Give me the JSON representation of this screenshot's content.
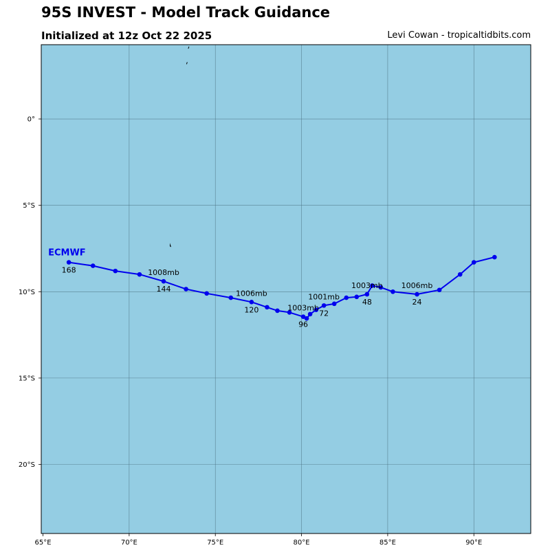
{
  "header": {
    "title": "95S INVEST - Model Track Guidance",
    "subtitle": "Initialized at 12z Oct 22 2025",
    "credit": "Levi Cowan - tropicaltidbits.com"
  },
  "colors": {
    "ocean": "#94cde3",
    "grid": "#4a6f80",
    "track": "#0000ee",
    "land": "#000000",
    "frame": "#000000"
  },
  "map": {
    "lon_range": [
      64.9,
      93.3
    ],
    "lat_range": [
      -24.0,
      4.3
    ],
    "lon_gridlines": [
      70,
      75,
      80,
      85,
      90
    ],
    "lat_gridlines": [
      0,
      -5,
      -10,
      -15,
      -20
    ],
    "lon_ticks": [
      {
        "value": 65,
        "label": "65°E"
      },
      {
        "value": 70,
        "label": "70°E"
      },
      {
        "value": 75,
        "label": "75°E"
      },
      {
        "value": 80,
        "label": "80°E"
      },
      {
        "value": 85,
        "label": "85°E"
      },
      {
        "value": 90,
        "label": "90°E"
      }
    ],
    "lat_ticks": [
      {
        "value": 0,
        "label": "0°"
      },
      {
        "value": -5,
        "label": "5°S"
      },
      {
        "value": -10,
        "label": "10°S"
      },
      {
        "value": -15,
        "label": "15°S"
      },
      {
        "value": -20,
        "label": "20°S"
      }
    ],
    "islands": [
      {
        "lon": 73.45,
        "lat": 4.15
      },
      {
        "lon": 73.35,
        "lat": 3.25
      },
      {
        "lon": 72.4,
        "lat": -7.3
      }
    ]
  },
  "chart_data": {
    "type": "map-track",
    "model": "ECMWF",
    "track": [
      {
        "lon": 91.2,
        "lat": -8.0
      },
      {
        "lon": 90.0,
        "lat": -8.3
      },
      {
        "lon": 89.2,
        "lat": -9.0
      },
      {
        "lon": 88.0,
        "lat": -9.9
      },
      {
        "lon": 86.7,
        "lat": -10.15
      },
      {
        "lon": 85.3,
        "lat": -10.0
      },
      {
        "lon": 84.6,
        "lat": -9.75
      },
      {
        "lon": 84.1,
        "lat": -9.65
      },
      {
        "lon": 83.8,
        "lat": -10.15
      },
      {
        "lon": 83.2,
        "lat": -10.3
      },
      {
        "lon": 82.6,
        "lat": -10.35
      },
      {
        "lon": 81.9,
        "lat": -10.7
      },
      {
        "lon": 81.3,
        "lat": -10.8
      },
      {
        "lon": 80.85,
        "lat": -11.05
      },
      {
        "lon": 80.5,
        "lat": -11.3
      },
      {
        "lon": 80.3,
        "lat": -11.55
      },
      {
        "lon": 80.1,
        "lat": -11.45
      },
      {
        "lon": 79.3,
        "lat": -11.2
      },
      {
        "lon": 78.6,
        "lat": -11.1
      },
      {
        "lon": 78.0,
        "lat": -10.9
      },
      {
        "lon": 77.1,
        "lat": -10.6
      },
      {
        "lon": 75.9,
        "lat": -10.35
      },
      {
        "lon": 74.5,
        "lat": -10.1
      },
      {
        "lon": 73.3,
        "lat": -9.85
      },
      {
        "lon": 72.0,
        "lat": -9.4
      },
      {
        "lon": 70.6,
        "lat": -9.0
      },
      {
        "lon": 69.2,
        "lat": -8.8
      },
      {
        "lon": 67.9,
        "lat": -8.5
      },
      {
        "lon": 66.5,
        "lat": -8.3
      }
    ],
    "hour_labels": [
      {
        "text": "24",
        "lon": 86.7,
        "lat": -10.15
      },
      {
        "text": "48",
        "lon": 83.8,
        "lat": -10.15
      },
      {
        "text": "72",
        "lon": 81.3,
        "lat": -10.8
      },
      {
        "text": "96",
        "lon": 80.1,
        "lat": -11.45
      },
      {
        "text": "120",
        "lon": 77.1,
        "lat": -10.6
      },
      {
        "text": "144",
        "lon": 72.0,
        "lat": -9.4
      },
      {
        "text": "168",
        "lon": 66.5,
        "lat": -8.3
      }
    ],
    "pressure_labels": [
      {
        "text": "1006mb",
        "lon": 86.7,
        "lat": -10.15
      },
      {
        "text": "1003mb",
        "lon": 83.8,
        "lat": -10.15
      },
      {
        "text": "1001mb",
        "lon": 81.3,
        "lat": -10.8
      },
      {
        "text": "1003mb",
        "lon": 80.1,
        "lat": -11.45
      },
      {
        "text": "1006mb",
        "lon": 77.1,
        "lat": -10.6
      },
      {
        "text": "1008mb",
        "lon": 72.0,
        "lat": -9.4
      }
    ]
  }
}
